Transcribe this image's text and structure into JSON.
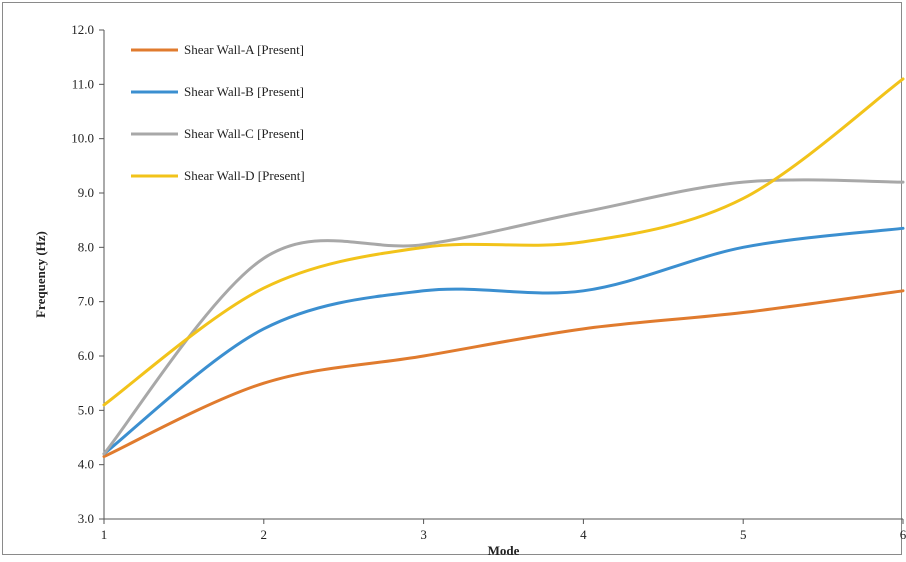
{
  "chart_data": {
    "type": "line",
    "title": "",
    "xlabel": "Mode",
    "ylabel": "Frequency (Hz)",
    "x": [
      1,
      2,
      3,
      4,
      5,
      6
    ],
    "xticks": [
      "1",
      "2",
      "3",
      "4",
      "5",
      "6"
    ],
    "ylim": [
      3.0,
      12.0
    ],
    "yticks": [
      "3.0",
      "4.0",
      "5.0",
      "6.0",
      "7.0",
      "8.0",
      "9.0",
      "10.0",
      "11.0",
      "12.0"
    ],
    "grid": false,
    "legend_position": "top-left",
    "series": [
      {
        "name": "Shear Wall-A [Present]",
        "color": "#e07b2e",
        "values": [
          4.15,
          5.5,
          6.0,
          6.5,
          6.8,
          7.2
        ]
      },
      {
        "name": "Shear Wall-B [Present]",
        "color": "#3b8fd0",
        "values": [
          4.2,
          6.5,
          7.2,
          7.2,
          8.0,
          8.35
        ]
      },
      {
        "name": "Shear Wall-C [Present]",
        "color": "#a8a8a8",
        "values": [
          4.2,
          7.8,
          8.05,
          8.65,
          9.2,
          9.2
        ]
      },
      {
        "name": "Shear Wall-D [Present]",
        "color": "#f2c31a",
        "values": [
          5.1,
          7.25,
          8.0,
          8.1,
          8.9,
          11.1
        ]
      }
    ]
  }
}
